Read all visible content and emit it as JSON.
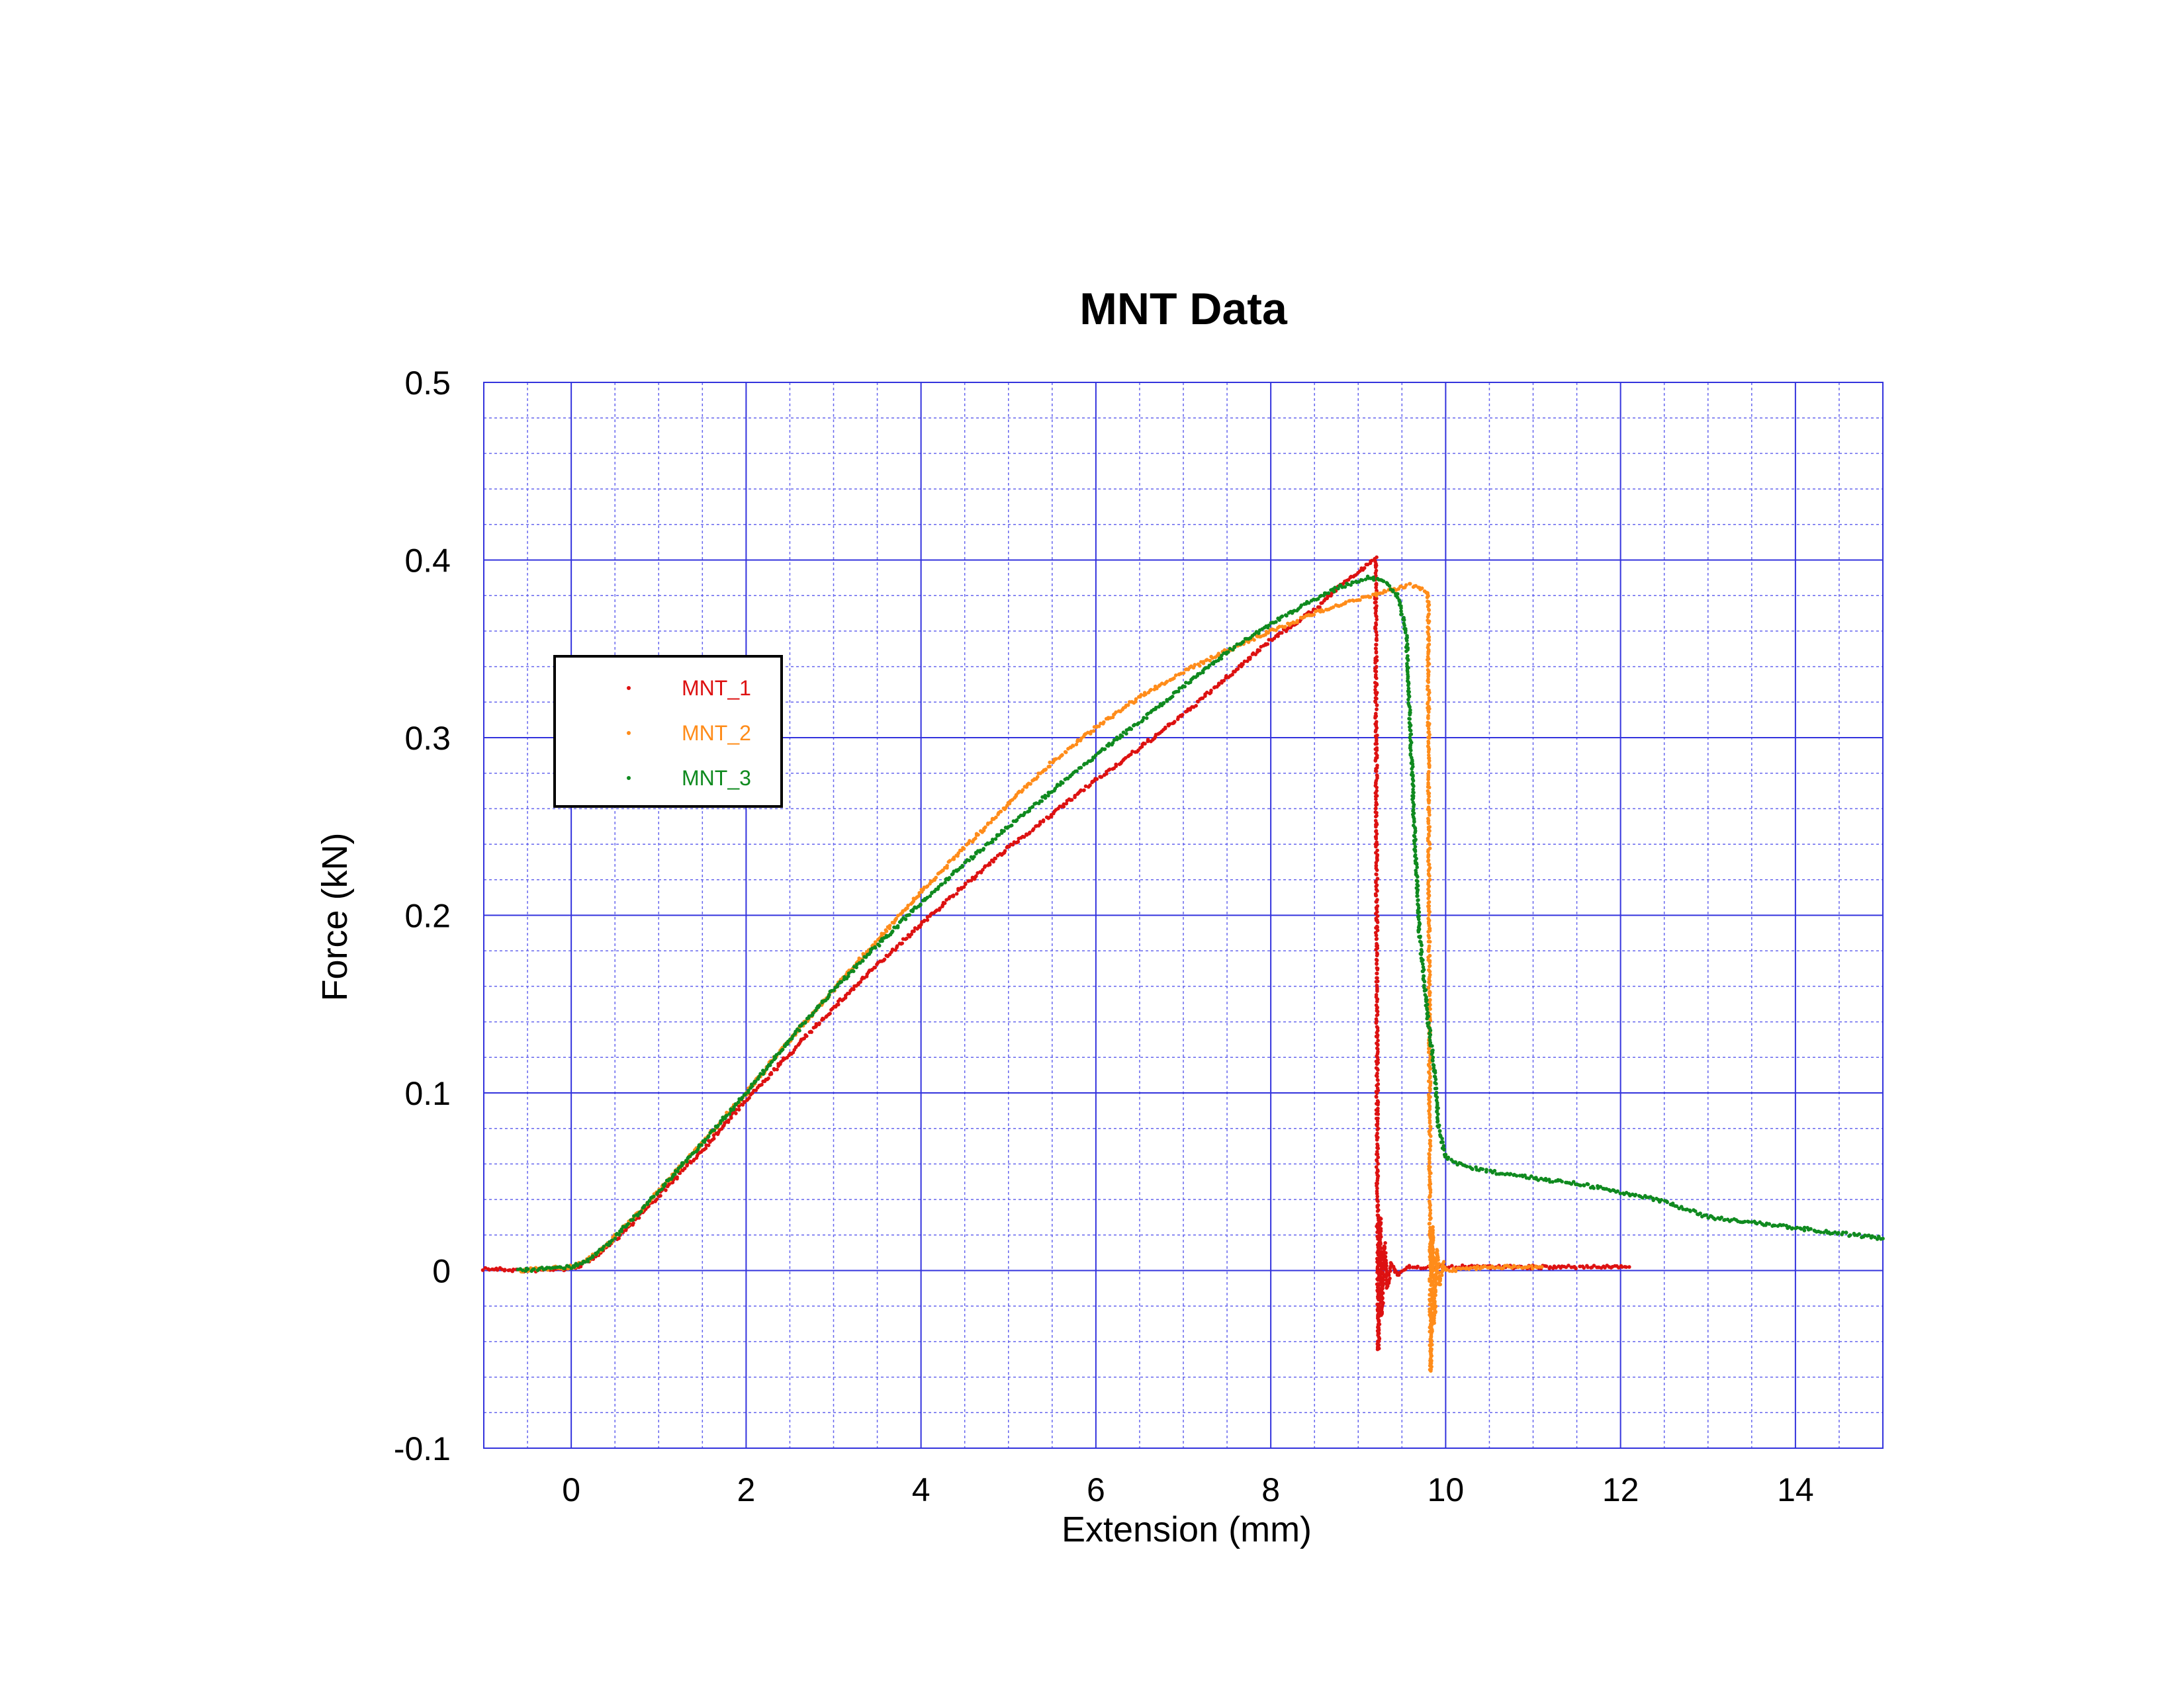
{
  "chart_data": {
    "type": "scatter",
    "title": "MNT Data",
    "xlabel": "Extension (mm)",
    "ylabel": "Force (kN)",
    "xlim": [
      -1,
      15
    ],
    "ylim": [
      -0.1,
      0.5
    ],
    "x_ticks": [
      0,
      2,
      4,
      6,
      8,
      10,
      12,
      14
    ],
    "x_tick_labels": [
      "0",
      "2",
      "4",
      "6",
      "8",
      "10",
      "12",
      "14"
    ],
    "y_ticks": [
      -0.1,
      0,
      0.1,
      0.2,
      0.3,
      0.4,
      0.5
    ],
    "y_tick_labels": [
      "-0.1",
      "0",
      "0.1",
      "0.2",
      "0.3",
      "0.4",
      "0.5"
    ],
    "grid": true,
    "legend_position": "upper-left",
    "colors": {
      "grid_major": "#3333dd",
      "grid_minor": "#6666ee",
      "legend_border": "#000000"
    },
    "series": [
      {
        "name": "MNT_1",
        "color": "#dd1111",
        "points": [
          [
            -1.0,
            0.001
          ],
          [
            -0.5,
            0.0
          ],
          [
            0.0,
            0.001
          ],
          [
            0.2,
            0.005
          ],
          [
            0.4,
            0.013
          ],
          [
            0.6,
            0.022
          ],
          [
            0.8,
            0.032
          ],
          [
            1.0,
            0.042
          ],
          [
            1.5,
            0.068
          ],
          [
            2.0,
            0.096
          ],
          [
            2.5,
            0.122
          ],
          [
            3.0,
            0.148
          ],
          [
            3.5,
            0.172
          ],
          [
            4.0,
            0.195
          ],
          [
            4.5,
            0.217
          ],
          [
            5.0,
            0.238
          ],
          [
            5.5,
            0.257
          ],
          [
            6.0,
            0.276
          ],
          [
            6.5,
            0.294
          ],
          [
            7.0,
            0.313
          ],
          [
            7.5,
            0.334
          ],
          [
            8.0,
            0.355
          ],
          [
            8.5,
            0.372
          ],
          [
            8.8,
            0.386
          ],
          [
            9.0,
            0.393
          ],
          [
            9.2,
            0.401
          ],
          [
            9.22,
            0.044
          ],
          [
            9.23,
            -0.045
          ],
          [
            9.25,
            0.03
          ],
          [
            9.27,
            -0.025
          ],
          [
            9.3,
            0.015
          ],
          [
            9.33,
            -0.01
          ],
          [
            9.38,
            0.005
          ],
          [
            9.45,
            -0.003
          ],
          [
            9.55,
            0.002
          ],
          [
            10.0,
            0.002
          ],
          [
            10.5,
            0.002
          ],
          [
            11.0,
            0.002
          ],
          [
            11.5,
            0.002
          ],
          [
            12.0,
            0.002
          ],
          [
            12.1,
            0.002
          ]
        ]
      },
      {
        "name": "MNT_2",
        "color": "#ff8c1a",
        "points": [
          [
            -0.6,
            0.0
          ],
          [
            0.0,
            0.002
          ],
          [
            0.2,
            0.006
          ],
          [
            0.4,
            0.014
          ],
          [
            0.6,
            0.024
          ],
          [
            0.8,
            0.034
          ],
          [
            1.0,
            0.045
          ],
          [
            1.5,
            0.072
          ],
          [
            2.0,
            0.1
          ],
          [
            2.5,
            0.13
          ],
          [
            3.0,
            0.158
          ],
          [
            3.5,
            0.186
          ],
          [
            4.0,
            0.213
          ],
          [
            4.5,
            0.238
          ],
          [
            5.0,
            0.263
          ],
          [
            5.5,
            0.286
          ],
          [
            6.0,
            0.306
          ],
          [
            6.5,
            0.323
          ],
          [
            7.0,
            0.337
          ],
          [
            7.5,
            0.349
          ],
          [
            8.0,
            0.36
          ],
          [
            8.5,
            0.37
          ],
          [
            9.0,
            0.378
          ],
          [
            9.3,
            0.382
          ],
          [
            9.6,
            0.386
          ],
          [
            9.8,
            0.382
          ],
          [
            9.82,
            0.045
          ],
          [
            9.83,
            -0.057
          ],
          [
            9.85,
            0.025
          ],
          [
            9.87,
            -0.03
          ],
          [
            9.9,
            0.012
          ],
          [
            9.93,
            -0.008
          ],
          [
            9.97,
            0.004
          ],
          [
            10.0,
            0.0
          ],
          [
            10.5,
            0.002
          ],
          [
            11.0,
            0.002
          ],
          [
            11.1,
            0.002
          ]
        ]
      },
      {
        "name": "MNT_3",
        "color": "#0f8a1f",
        "points": [
          [
            -0.6,
            0.0
          ],
          [
            0.0,
            0.002
          ],
          [
            0.2,
            0.006
          ],
          [
            0.4,
            0.014
          ],
          [
            0.6,
            0.024
          ],
          [
            0.8,
            0.034
          ],
          [
            1.0,
            0.045
          ],
          [
            1.5,
            0.072
          ],
          [
            2.0,
            0.1
          ],
          [
            2.5,
            0.13
          ],
          [
            3.0,
            0.158
          ],
          [
            3.5,
            0.183
          ],
          [
            4.0,
            0.207
          ],
          [
            4.5,
            0.229
          ],
          [
            5.0,
            0.25
          ],
          [
            5.5,
            0.27
          ],
          [
            6.0,
            0.29
          ],
          [
            6.5,
            0.309
          ],
          [
            7.0,
            0.329
          ],
          [
            7.5,
            0.348
          ],
          [
            8.0,
            0.364
          ],
          [
            8.5,
            0.378
          ],
          [
            8.8,
            0.385
          ],
          [
            9.1,
            0.39
          ],
          [
            9.3,
            0.388
          ],
          [
            9.45,
            0.38
          ],
          [
            9.55,
            0.36
          ],
          [
            9.6,
            0.3
          ],
          [
            9.65,
            0.24
          ],
          [
            9.7,
            0.19
          ],
          [
            9.8,
            0.14
          ],
          [
            9.88,
            0.11
          ],
          [
            9.92,
            0.08
          ],
          [
            10.0,
            0.064
          ],
          [
            10.2,
            0.059
          ],
          [
            10.5,
            0.056
          ],
          [
            11.0,
            0.052
          ],
          [
            11.5,
            0.049
          ],
          [
            12.0,
            0.044
          ],
          [
            12.5,
            0.039
          ],
          [
            13.0,
            0.03
          ],
          [
            13.5,
            0.027
          ],
          [
            14.0,
            0.024
          ],
          [
            14.5,
            0.021
          ],
          [
            15.0,
            0.018
          ]
        ]
      }
    ]
  }
}
